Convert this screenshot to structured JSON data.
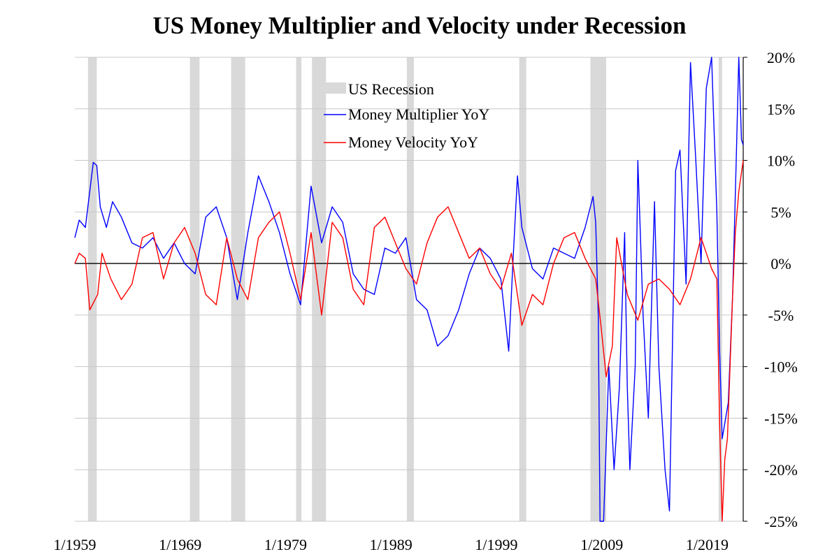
{
  "chart_data": {
    "type": "line",
    "title": "US Money Multiplier and Velocity under Recession",
    "xlabel": "",
    "ylabel": "",
    "x_range": [
      "1959-01",
      "2022-06"
    ],
    "ylim": [
      -25,
      20
    ],
    "y_axis_position": "right",
    "grid": "horizontal",
    "legend_placement": "top-center",
    "x_tick_labels": [
      "1/1959",
      "1/1969",
      "1/1979",
      "1/1989",
      "1/1999",
      "1/2009",
      "1/2019"
    ],
    "y_tick_labels": [
      "20%",
      "15%",
      "10%",
      "5%",
      "0%",
      "-5%",
      "-10%",
      "-15%",
      "-20%",
      "-25%"
    ],
    "y_ticks": [
      20,
      15,
      10,
      5,
      0,
      -5,
      -10,
      -15,
      -20,
      -25
    ],
    "recession_label": "US Recession",
    "recession_color": "#d9d9d9",
    "recessions": [
      [
        "1960-04",
        "1961-02"
      ],
      [
        "1969-12",
        "1970-11"
      ],
      [
        "1973-11",
        "1975-03"
      ],
      [
        "1980-01",
        "1980-07"
      ],
      [
        "1981-07",
        "1982-11"
      ],
      [
        "1990-07",
        "1991-03"
      ],
      [
        "2001-03",
        "2001-11"
      ],
      [
        "2007-12",
        "2009-06"
      ],
      [
        "2020-02",
        "2020-04"
      ]
    ],
    "series": [
      {
        "name": "Money Multiplier YoY",
        "color": "#0000ff",
        "points": [
          [
            "1959-01",
            2.5
          ],
          [
            "1959-06",
            4.2
          ],
          [
            "1960-01",
            3.5
          ],
          [
            "1960-06",
            7.0
          ],
          [
            "1960-10",
            9.8
          ],
          [
            "1961-02",
            9.5
          ],
          [
            "1961-06",
            5.5
          ],
          [
            "1962-01",
            3.5
          ],
          [
            "1962-08",
            6.0
          ],
          [
            "1963-06",
            4.5
          ],
          [
            "1964-06",
            2.0
          ],
          [
            "1965-06",
            1.5
          ],
          [
            "1966-06",
            2.5
          ],
          [
            "1967-06",
            0.5
          ],
          [
            "1968-06",
            2.0
          ],
          [
            "1969-06",
            0.0
          ],
          [
            "1970-06",
            -1.0
          ],
          [
            "1971-06",
            4.5
          ],
          [
            "1972-06",
            5.5
          ],
          [
            "1973-06",
            2.5
          ],
          [
            "1974-06",
            -3.5
          ],
          [
            "1975-06",
            3.0
          ],
          [
            "1976-06",
            8.5
          ],
          [
            "1977-06",
            6.0
          ],
          [
            "1978-06",
            3.0
          ],
          [
            "1979-06",
            -1.0
          ],
          [
            "1980-06",
            -4.0
          ],
          [
            "1981-06",
            7.5
          ],
          [
            "1982-06",
            2.0
          ],
          [
            "1983-06",
            5.5
          ],
          [
            "1984-06",
            4.0
          ],
          [
            "1985-06",
            -1.0
          ],
          [
            "1986-06",
            -2.5
          ],
          [
            "1987-06",
            -3.0
          ],
          [
            "1988-06",
            1.5
          ],
          [
            "1989-06",
            1.0
          ],
          [
            "1990-06",
            2.5
          ],
          [
            "1991-06",
            -3.5
          ],
          [
            "1992-06",
            -4.5
          ],
          [
            "1993-06",
            -8.0
          ],
          [
            "1994-06",
            -7.0
          ],
          [
            "1995-06",
            -4.5
          ],
          [
            "1996-06",
            -1.0
          ],
          [
            "1997-06",
            1.5
          ],
          [
            "1998-06",
            0.5
          ],
          [
            "1999-06",
            -1.5
          ],
          [
            "2000-03",
            -8.5
          ],
          [
            "2000-08",
            0.5
          ],
          [
            "2001-01",
            8.5
          ],
          [
            "2001-06",
            3.5
          ],
          [
            "2002-06",
            -0.5
          ],
          [
            "2003-06",
            -1.5
          ],
          [
            "2004-06",
            1.5
          ],
          [
            "2005-06",
            1.0
          ],
          [
            "2006-06",
            0.5
          ],
          [
            "2007-06",
            3.5
          ],
          [
            "2008-03",
            6.5
          ],
          [
            "2008-06",
            4.0
          ],
          [
            "2008-09",
            -5.0
          ],
          [
            "2008-11",
            -25.0
          ],
          [
            "2009-03",
            -25.0
          ],
          [
            "2009-09",
            -10.0
          ],
          [
            "2010-03",
            -20.0
          ],
          [
            "2010-09",
            -12.0
          ],
          [
            "2011-03",
            3.0
          ],
          [
            "2011-06",
            -12.0
          ],
          [
            "2011-09",
            -20.0
          ],
          [
            "2012-03",
            -10.0
          ],
          [
            "2012-06",
            10.0
          ],
          [
            "2012-12",
            -5.0
          ],
          [
            "2013-06",
            -15.0
          ],
          [
            "2014-01",
            6.0
          ],
          [
            "2014-06",
            -10.0
          ],
          [
            "2015-01",
            -20.0
          ],
          [
            "2015-06",
            -24.0
          ],
          [
            "2016-01",
            9.0
          ],
          [
            "2016-06",
            11.0
          ],
          [
            "2017-01",
            -2.0
          ],
          [
            "2017-06",
            19.5
          ],
          [
            "2017-12",
            10.0
          ],
          [
            "2018-06",
            0.0
          ],
          [
            "2018-12",
            17.0
          ],
          [
            "2019-06",
            20.0
          ],
          [
            "2019-12",
            5.0
          ],
          [
            "2020-03",
            -8.0
          ],
          [
            "2020-06",
            -17.0
          ],
          [
            "2021-01",
            -13.5
          ],
          [
            "2021-06",
            -3.0
          ],
          [
            "2021-10",
            10.0
          ],
          [
            "2022-01",
            20.0
          ],
          [
            "2022-04",
            12.0
          ],
          [
            "2022-06",
            11.5
          ]
        ]
      },
      {
        "name": "Money Velocity YoY",
        "color": "#ff0000",
        "points": [
          [
            "1959-01",
            0.0
          ],
          [
            "1959-06",
            1.0
          ],
          [
            "1960-01",
            0.5
          ],
          [
            "1960-06",
            -4.5
          ],
          [
            "1961-03",
            -3.0
          ],
          [
            "1961-08",
            1.0
          ],
          [
            "1962-06",
            -1.5
          ],
          [
            "1963-06",
            -3.5
          ],
          [
            "1964-06",
            -2.0
          ],
          [
            "1965-06",
            2.5
          ],
          [
            "1966-06",
            3.0
          ],
          [
            "1967-06",
            -1.5
          ],
          [
            "1968-06",
            2.0
          ],
          [
            "1969-06",
            3.5
          ],
          [
            "1970-06",
            1.0
          ],
          [
            "1971-06",
            -3.0
          ],
          [
            "1972-06",
            -4.0
          ],
          [
            "1973-06",
            2.5
          ],
          [
            "1974-06",
            -1.5
          ],
          [
            "1975-06",
            -3.5
          ],
          [
            "1976-06",
            2.5
          ],
          [
            "1977-06",
            4.0
          ],
          [
            "1978-06",
            5.0
          ],
          [
            "1979-06",
            1.0
          ],
          [
            "1980-06",
            -3.5
          ],
          [
            "1981-06",
            3.0
          ],
          [
            "1982-06",
            -5.0
          ],
          [
            "1983-06",
            4.0
          ],
          [
            "1984-06",
            2.5
          ],
          [
            "1985-06",
            -2.5
          ],
          [
            "1986-06",
            -4.0
          ],
          [
            "1987-06",
            3.5
          ],
          [
            "1988-06",
            4.5
          ],
          [
            "1989-06",
            2.0
          ],
          [
            "1990-06",
            -0.5
          ],
          [
            "1991-06",
            -2.0
          ],
          [
            "1992-06",
            2.0
          ],
          [
            "1993-06",
            4.5
          ],
          [
            "1994-06",
            5.5
          ],
          [
            "1995-06",
            3.0
          ],
          [
            "1996-06",
            0.5
          ],
          [
            "1997-06",
            1.5
          ],
          [
            "1998-06",
            -1.0
          ],
          [
            "1999-06",
            -2.5
          ],
          [
            "2000-06",
            1.0
          ],
          [
            "2001-06",
            -6.0
          ],
          [
            "2002-06",
            -3.0
          ],
          [
            "2003-06",
            -4.0
          ],
          [
            "2004-06",
            0.0
          ],
          [
            "2005-06",
            2.5
          ],
          [
            "2006-06",
            3.0
          ],
          [
            "2007-06",
            0.5
          ],
          [
            "2008-06",
            -1.5
          ],
          [
            "2008-12",
            -6.0
          ],
          [
            "2009-06",
            -11.0
          ],
          [
            "2010-01",
            -8.0
          ],
          [
            "2010-06",
            2.5
          ],
          [
            "2011-06",
            -3.0
          ],
          [
            "2012-06",
            -5.5
          ],
          [
            "2013-06",
            -2.0
          ],
          [
            "2014-06",
            -1.5
          ],
          [
            "2015-06",
            -2.5
          ],
          [
            "2016-06",
            -4.0
          ],
          [
            "2017-06",
            -1.5
          ],
          [
            "2018-06",
            2.5
          ],
          [
            "2019-06",
            -0.5
          ],
          [
            "2019-12",
            -1.5
          ],
          [
            "2020-03",
            -15.0
          ],
          [
            "2020-06",
            -25.0
          ],
          [
            "2020-09",
            -19.0
          ],
          [
            "2020-12",
            -17.0
          ],
          [
            "2021-06",
            -3.0
          ],
          [
            "2021-09",
            3.0
          ],
          [
            "2022-01",
            7.0
          ],
          [
            "2022-06",
            10.0
          ]
        ]
      }
    ]
  }
}
